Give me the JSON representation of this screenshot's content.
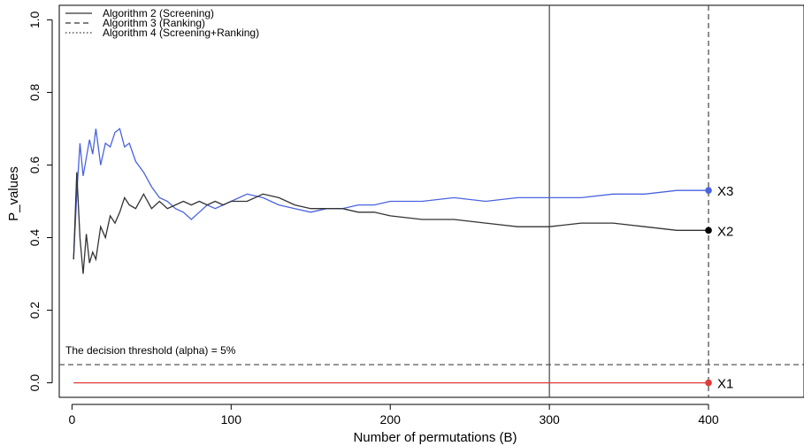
{
  "chart_data": {
    "type": "line",
    "title": "",
    "xlabel": "Number of permutations (B)",
    "ylabel": "P_values",
    "xlim": [
      -8,
      460
    ],
    "ylim": [
      -0.04,
      1.04
    ],
    "x_ticks": [
      0,
      100,
      200,
      300,
      400
    ],
    "y_ticks": [
      0.0,
      0.2,
      0.4,
      0.6,
      0.8,
      1.0
    ],
    "x_tick_labels": [
      "0",
      "100",
      "200",
      "300",
      "400"
    ],
    "y_tick_labels": [
      "0.0",
      "0.2",
      "0.4",
      "0.6",
      "0.8",
      "1.0"
    ],
    "grid": false,
    "legend_position": "top-left",
    "legend": [
      {
        "label": "Algorithm 2 (Screening)",
        "dash": "solid"
      },
      {
        "label": "Algorithm 3 (Ranking)",
        "dash": "dashed"
      },
      {
        "label": "Algorithm 4 (Screening+Ranking)",
        "dash": "dotted"
      }
    ],
    "threshold": {
      "y": 0.05,
      "label": "The decision threshold (alpha) = 5%",
      "style": "dashed"
    },
    "vertical_lines": [
      {
        "x": 300,
        "style": "solid"
      },
      {
        "x": 400,
        "style": "dashed"
      }
    ],
    "series": [
      {
        "name": "X3",
        "color": "#4a63e0",
        "x": [
          1,
          3,
          5,
          7,
          9,
          11,
          13,
          15,
          18,
          21,
          24,
          27,
          30,
          33,
          36,
          40,
          45,
          50,
          55,
          60,
          65,
          70,
          75,
          80,
          85,
          90,
          95,
          100,
          110,
          120,
          130,
          140,
          150,
          160,
          170,
          180,
          190,
          200,
          220,
          240,
          260,
          280,
          300,
          320,
          340,
          360,
          380,
          400
        ],
        "values": [
          0.34,
          0.52,
          0.66,
          0.57,
          0.62,
          0.67,
          0.63,
          0.7,
          0.6,
          0.66,
          0.65,
          0.69,
          0.7,
          0.65,
          0.66,
          0.61,
          0.58,
          0.54,
          0.51,
          0.5,
          0.48,
          0.47,
          0.45,
          0.47,
          0.49,
          0.48,
          0.49,
          0.5,
          0.52,
          0.51,
          0.49,
          0.48,
          0.47,
          0.48,
          0.48,
          0.49,
          0.49,
          0.5,
          0.5,
          0.51,
          0.5,
          0.51,
          0.51,
          0.51,
          0.52,
          0.52,
          0.53,
          0.53
        ]
      },
      {
        "name": "X2",
        "color": "#333333",
        "x": [
          1,
          3,
          5,
          7,
          9,
          11,
          13,
          15,
          18,
          21,
          24,
          27,
          30,
          33,
          36,
          40,
          45,
          50,
          55,
          60,
          65,
          70,
          75,
          80,
          85,
          90,
          95,
          100,
          110,
          120,
          130,
          140,
          150,
          160,
          170,
          180,
          190,
          200,
          220,
          240,
          260,
          280,
          300,
          320,
          340,
          360,
          380,
          400
        ],
        "values": [
          0.34,
          0.58,
          0.4,
          0.3,
          0.41,
          0.33,
          0.36,
          0.34,
          0.43,
          0.4,
          0.46,
          0.44,
          0.47,
          0.51,
          0.49,
          0.48,
          0.52,
          0.48,
          0.5,
          0.48,
          0.49,
          0.5,
          0.49,
          0.5,
          0.49,
          0.5,
          0.49,
          0.5,
          0.5,
          0.52,
          0.51,
          0.49,
          0.48,
          0.48,
          0.48,
          0.47,
          0.47,
          0.46,
          0.45,
          0.45,
          0.44,
          0.43,
          0.43,
          0.44,
          0.44,
          0.43,
          0.42,
          0.42
        ]
      },
      {
        "name": "X1",
        "color": "#e03c3c",
        "x": [
          1,
          400
        ],
        "values": [
          0.0,
          0.0
        ]
      }
    ]
  }
}
